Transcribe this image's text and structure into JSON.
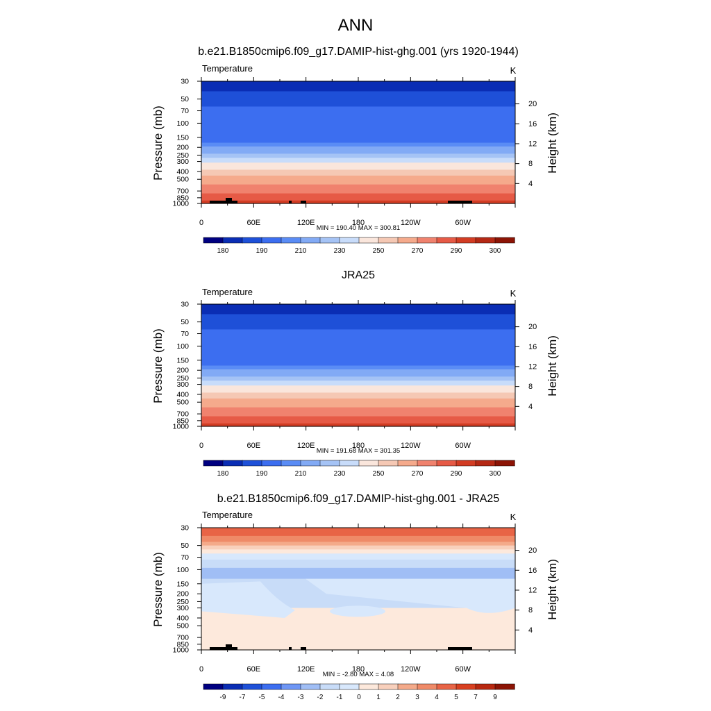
{
  "figure_title": "ANN",
  "colors": {
    "abs_levels": [
      "#000080",
      "#0a2db4",
      "#1e50d8",
      "#3c6ef0",
      "#5a8cf5",
      "#82aaf5",
      "#a5c3f5",
      "#c8dcfa",
      "#fae6dc",
      "#f5c8b4",
      "#f5aa8c",
      "#f0826e",
      "#e65a46",
      "#d23c23",
      "#b42814",
      "#8c1405",
      "#640000"
    ],
    "diff_levels": [
      "#000080",
      "#0a2db4",
      "#1e50d8",
      "#3c6ef0",
      "#6e96f5",
      "#a0bef5",
      "#c8dcf8",
      "#d8e8fc",
      "#fde9dc",
      "#f8d0bc",
      "#f4aa8a",
      "#ef8a68",
      "#e86446",
      "#d84020",
      "#b82810",
      "#8c1405",
      "#640000"
    ],
    "topography": "#000000"
  },
  "chart_data": [
    {
      "type": "heatmap",
      "title": "b.e21.B1850cmip6.f09_g17.DAMIP-hist-ghg.001 (yrs 1920-1944)",
      "left_label": "Temperature",
      "units": "K",
      "ylabel": "Pressure (mb)",
      "ylabel_right": "Height (km)",
      "xticks": [
        "0",
        "60E",
        "120E",
        "180",
        "120W",
        "60W"
      ],
      "yticks": [
        30,
        50,
        70,
        100,
        150,
        200,
        250,
        300,
        400,
        500,
        700,
        850,
        1000
      ],
      "yticks_right": [
        20,
        16,
        12,
        8,
        4
      ],
      "stats": "MIN = 190.40  MAX = 300.81",
      "colorbar_labels": [
        "180",
        "190",
        "210",
        "230",
        "250",
        "270",
        "290",
        "300"
      ],
      "colorbar_boxes": 16,
      "bands": [
        1,
        2,
        3,
        3,
        4,
        5,
        6,
        7,
        8,
        9,
        10,
        11,
        12,
        13
      ],
      "band_pressure_bounds": [
        30,
        40,
        62,
        150,
        175,
        195,
        240,
        270,
        310,
        380,
        450,
        580,
        750,
        920,
        1000
      ],
      "has_topography": true
    },
    {
      "type": "heatmap",
      "title": "JRA25",
      "left_label": "Temperature",
      "units": "K",
      "ylabel": "Pressure (mb)",
      "ylabel_right": "Height (km)",
      "xticks": [
        "0",
        "60E",
        "120E",
        "180",
        "120W",
        "60W"
      ],
      "yticks": [
        30,
        50,
        70,
        100,
        150,
        200,
        250,
        300,
        400,
        500,
        700,
        850,
        1000
      ],
      "yticks_right": [
        20,
        16,
        12,
        8,
        4
      ],
      "stats": "MIN = 191.68  MAX = 301.35",
      "colorbar_labels": [
        "180",
        "190",
        "210",
        "230",
        "250",
        "270",
        "290",
        "300"
      ],
      "colorbar_boxes": 16,
      "bands": [
        1,
        2,
        3,
        3,
        4,
        5,
        6,
        7,
        8,
        9,
        10,
        11,
        12,
        13
      ],
      "band_pressure_bounds": [
        30,
        40,
        62,
        150,
        175,
        195,
        240,
        270,
        310,
        380,
        450,
        580,
        750,
        920,
        1000
      ],
      "has_topography": false
    },
    {
      "type": "heatmap",
      "title": "b.e21.B1850cmip6.f09_g17.DAMIP-hist-ghg.001 - JRA25",
      "left_label": "Temperature",
      "units": "K",
      "ylabel": "Pressure (mb)",
      "ylabel_right": "Height (km)",
      "xticks": [
        "0",
        "60E",
        "120E",
        "180",
        "120W",
        "60W"
      ],
      "yticks": [
        30,
        50,
        70,
        100,
        150,
        200,
        250,
        300,
        400,
        500,
        700,
        850,
        1000
      ],
      "yticks_right": [
        20,
        16,
        12,
        8,
        4
      ],
      "stats": "MIN =  -2.80  MAX =   4.08",
      "colorbar_labels": [
        "-9",
        "-7",
        "-5",
        "-4",
        "-3",
        "-2",
        "-1",
        "0",
        "1",
        "2",
        "3",
        "4",
        "5",
        "7",
        "9"
      ],
      "colorbar_boxes": 16,
      "bands": [
        12,
        11,
        10,
        9,
        8,
        7,
        6,
        5,
        6,
        6,
        8,
        8,
        8,
        8,
        8,
        8
      ],
      "band_pressure_bounds": [
        30,
        38,
        45,
        50,
        56,
        63,
        75,
        95,
        130,
        200,
        300,
        400,
        500,
        600,
        750,
        900,
        1000
      ],
      "has_topography": true
    }
  ]
}
